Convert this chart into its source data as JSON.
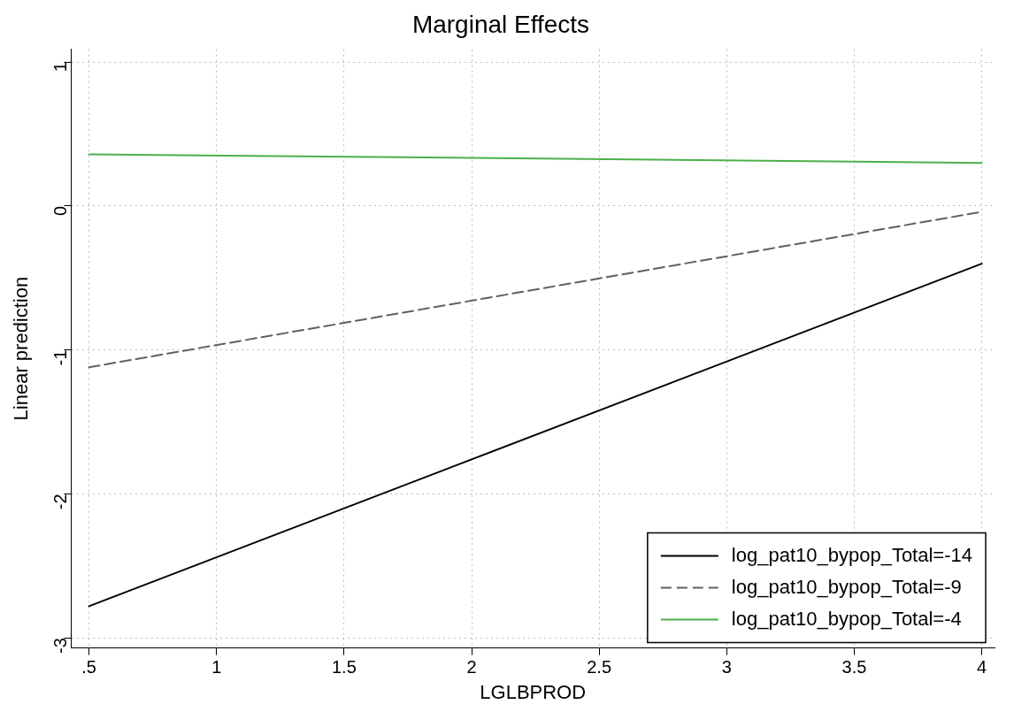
{
  "chart_data": {
    "type": "line",
    "title": "Marginal Effects",
    "xlabel": "LGLBPROD",
    "ylabel": "Linear prediction",
    "x": [
      0.5,
      4
    ],
    "series": [
      {
        "name": "log_pat10_bypop_Total=-14",
        "color": "#000000",
        "line_style": "solid",
        "values": [
          -2.78,
          -0.4
        ]
      },
      {
        "name": "log_pat10_bypop_Total=-9",
        "color": "#606060",
        "line_style": "dashed",
        "values": [
          -1.12,
          -0.04
        ]
      },
      {
        "name": "log_pat10_bypop_Total=-4",
        "color": "#4cb04c",
        "line_style": "solid",
        "values": [
          0.36,
          0.3
        ]
      }
    ],
    "xlim": [
      0.43,
      4.05
    ],
    "xticks": [
      {
        "value": 0.5,
        "label": ".5"
      },
      1,
      1.5,
      2,
      2.5,
      3,
      3.5,
      4
    ],
    "ylim": [
      -3.07,
      1.09
    ],
    "yticks": [
      -3,
      -2,
      -1,
      0,
      1
    ],
    "grid": true,
    "legend": "bottom right",
    "marker": "none"
  }
}
